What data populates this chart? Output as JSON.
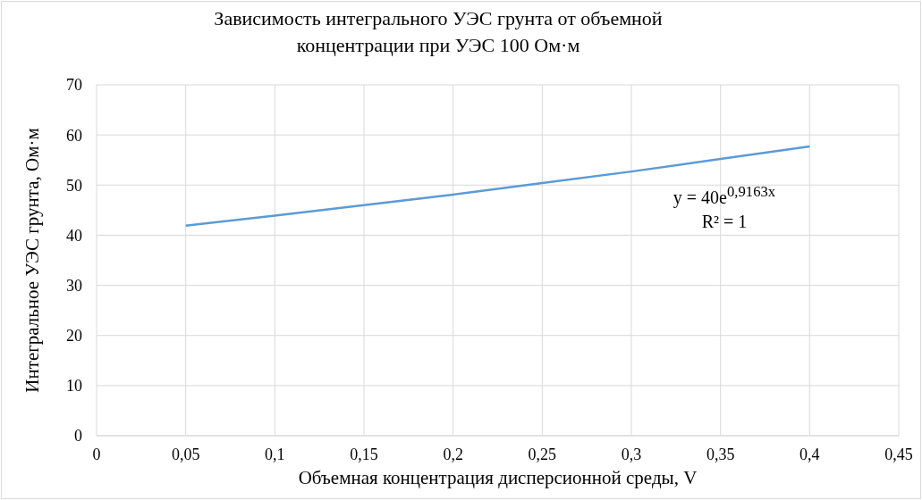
{
  "chart_data": {
    "type": "line",
    "title": "Зависимость интегрального УЭС грунта от объемной\nконцентрации при УЭС 100 Ом·м",
    "xlabel": "Объемная концентрация дисперсионной среды, V",
    "ylabel": "Интегральное УЭС грунта, Ом·м",
    "x": [
      0.05,
      0.1,
      0.15,
      0.2,
      0.25,
      0.3,
      0.35,
      0.4
    ],
    "series": [
      {
        "color": "#5b9bd5",
        "values": [
          41.9,
          43.9,
          46.0,
          48.1,
          50.4,
          52.7,
          55.2,
          57.7
        ]
      }
    ],
    "xlim": [
      0,
      0.45
    ],
    "xticks": [
      0,
      {
        "value": 0.05,
        "label": "0,05"
      },
      {
        "value": 0.1,
        "label": "0,1"
      },
      {
        "value": 0.15,
        "label": "0,15"
      },
      {
        "value": 0.2,
        "label": "0,2"
      },
      {
        "value": 0.25,
        "label": "0,25"
      },
      {
        "value": 0.3,
        "label": "0,3"
      },
      {
        "value": 0.35,
        "label": "0,35"
      },
      {
        "value": 0.4,
        "label": "0,4"
      },
      {
        "value": 0.45,
        "label": "0,45"
      }
    ],
    "ylim": [
      0,
      70
    ],
    "yticks": [
      0,
      10,
      20,
      30,
      40,
      50,
      60,
      70
    ],
    "grid": true,
    "marker": "none",
    "line_style": "solid",
    "legend": false,
    "annotations": [
      "y = 40e$^{0,9163x}$",
      "R² = 1"
    ]
  }
}
